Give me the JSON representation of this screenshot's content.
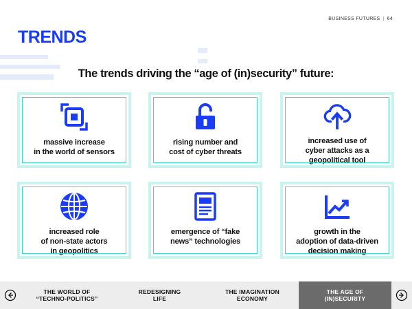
{
  "header": {
    "publication": "BUSINESS FUTURES",
    "page_number": "64",
    "section_title": "TRENDS"
  },
  "subtitle": "The trends driving the “age of (in)security” future:",
  "cards": [
    {
      "icon": "microchip-icon",
      "label_line1": "massive increase",
      "label_line2": "in the world of sensors",
      "label_line3": ""
    },
    {
      "icon": "unlocked-padlock-icon",
      "label_line1": "rising number and",
      "label_line2": "cost of cyber threats",
      "label_line3": ""
    },
    {
      "icon": "cloud-upload-icon",
      "label_line1": "increased use of",
      "label_line2": "cyber attacks as a",
      "label_line3": "geopolitical tool"
    },
    {
      "icon": "globe-icon",
      "label_line1": "increased role",
      "label_line2": "of non-state actors",
      "label_line3": "in geopolitics"
    },
    {
      "icon": "news-document-icon",
      "label_line1": "emergence of “fake",
      "label_line2": "news” technologies",
      "label_line3": ""
    },
    {
      "icon": "line-chart-icon",
      "label_line1": "growth in the",
      "label_line2": "adoption of data-driven",
      "label_line3": "decision making"
    }
  ],
  "footer": {
    "prev_icon": "arrow-left-circle-icon",
    "next_icon": "arrow-right-circle-icon",
    "items": [
      {
        "line1": "THE WORLD OF",
        "line2": "“TECHNO-POLITICS”",
        "active": false
      },
      {
        "line1": "REDESIGNING",
        "line2": "LIFE",
        "active": false
      },
      {
        "line1": "THE IMAGINATION",
        "line2": "ECONOMY",
        "active": false
      },
      {
        "line1": "THE AGE OF",
        "line2": "(IN)SECURITY",
        "active": true
      }
    ]
  },
  "colors": {
    "brand_blue": "#1a3cf5",
    "card_border": "#3dd6c8",
    "card_border_light": "#c9f3ef",
    "footer_bg": "#ededed",
    "footer_active": "#6b6b6b"
  }
}
